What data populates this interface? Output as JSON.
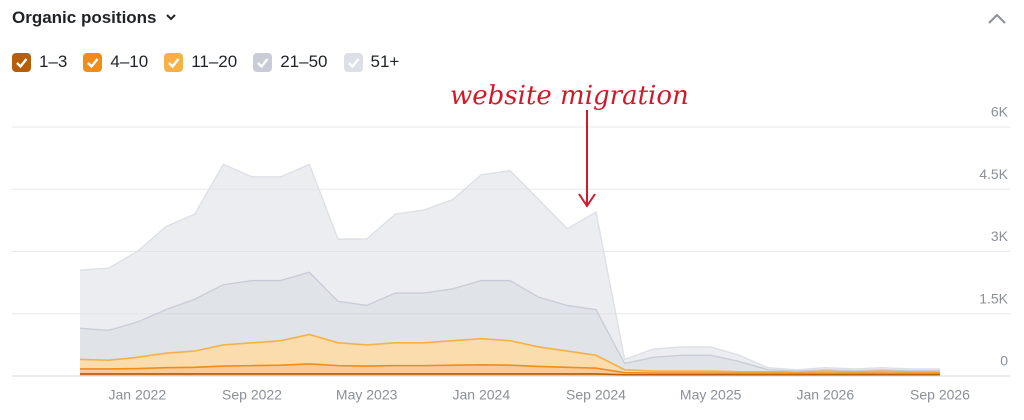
{
  "chart_data": {
    "type": "stacked-area",
    "title": "Organic positions",
    "annotation": "website migration",
    "categories": [
      null,
      null,
      "Jan 2022",
      null,
      null,
      null,
      "Sep 2022",
      null,
      null,
      null,
      "May 2023",
      null,
      null,
      null,
      "Jan 2024",
      null,
      null,
      null,
      "Sep 2024",
      null,
      null,
      null,
      "May 2025",
      null,
      null,
      null,
      "Jan 2026",
      null,
      null,
      null,
      "Sep 2026"
    ],
    "series": [
      {
        "name": "1–3",
        "color": "#b65f08",
        "values": [
          50,
          50,
          50,
          50,
          50,
          50,
          50,
          50,
          50,
          50,
          50,
          50,
          50,
          50,
          50,
          50,
          50,
          50,
          50,
          30,
          30,
          30,
          30,
          30,
          30,
          30,
          30,
          30,
          30,
          30,
          30
        ]
      },
      {
        "name": "4–10",
        "color": "#f08c1a",
        "values": [
          120,
          120,
          130,
          150,
          160,
          190,
          200,
          210,
          240,
          200,
          190,
          200,
          200,
          210,
          220,
          210,
          180,
          160,
          140,
          50,
          40,
          40,
          40,
          35,
          35,
          35,
          40,
          35,
          40,
          35,
          35
        ]
      },
      {
        "name": "11–20",
        "color": "#f6b146",
        "values": [
          230,
          210,
          270,
          350,
          390,
          510,
          550,
          590,
          710,
          550,
          510,
          550,
          550,
          590,
          630,
          590,
          470,
          390,
          310,
          70,
          50,
          50,
          50,
          35,
          35,
          35,
          50,
          35,
          50,
          35,
          35
        ]
      },
      {
        "name": "21–50",
        "color": "#c7ccd6",
        "values": [
          750,
          720,
          850,
          1050,
          1250,
          1450,
          1500,
          1450,
          1500,
          1000,
          950,
          1200,
          1200,
          1250,
          1400,
          1450,
          1200,
          1100,
          1100,
          150,
          330,
          380,
          380,
          250,
          50,
          20,
          30,
          30,
          30,
          30,
          30
        ]
      },
      {
        "name": "51+",
        "color": "#dcdfe6",
        "values": [
          1400,
          1500,
          1700,
          2000,
          2050,
          2900,
          2500,
          2500,
          2600,
          1500,
          1600,
          1900,
          2000,
          2150,
          2550,
          2650,
          2350,
          1850,
          2350,
          100,
          200,
          200,
          200,
          150,
          50,
          30,
          50,
          40,
          50,
          40,
          40
        ]
      }
    ],
    "ylim": [
      0,
      6000
    ],
    "yticks": [
      0,
      {
        "value": 1500,
        "label": "1.5K"
      },
      {
        "value": 3000,
        "label": "3K"
      },
      {
        "value": 4500,
        "label": "4.5K"
      },
      {
        "value": 6000,
        "label": "6K"
      }
    ],
    "grid": true
  }
}
